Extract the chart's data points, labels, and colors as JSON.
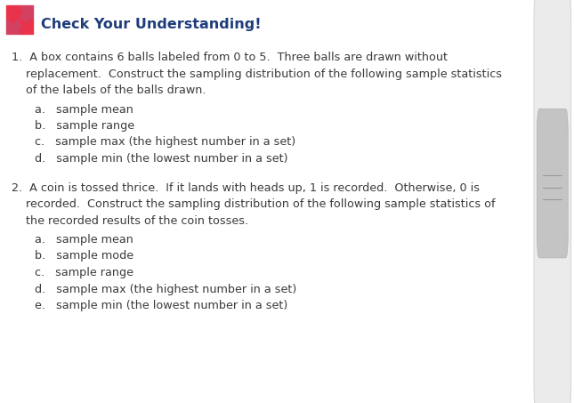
{
  "title": "Check Your Understanding!",
  "title_color": "#1f3d7a",
  "title_fontsize": 11.5,
  "background_color": "#ffffff",
  "body_color": "#3a3a3a",
  "body_fontsize": 9.2,
  "puzzle_color1": "#e8334a",
  "puzzle_color2": "#d44060",
  "item1_lines": [
    "1.  A box contains 6 balls labeled from 0 to 5.  Three balls are drawn without",
    "    replacement.  Construct the sampling distribution of the following sample statistics",
    "    of the labels of the balls drawn."
  ],
  "item1_subs": [
    "a.   sample mean",
    "b.   sample range",
    "c.   sample max (the highest number in a set)",
    "d.   sample min (the lowest number in a set)"
  ],
  "item2_lines": [
    "2.  A coin is tossed thrice.  If it lands with heads up, 1 is recorded.  Otherwise, 0 is",
    "    recorded.  Construct the sampling distribution of the following sample statistics of",
    "    the recorded results of the coin tosses."
  ],
  "item2_subs": [
    "a.   sample mean",
    "b.   sample mode",
    "c.   sample range",
    "d.   sample max (the highest number in a set)",
    "e.   sample min (the lowest number in a set)"
  ],
  "scrollbar_color": "#d0d0d0",
  "scrollbar_track": "#f0f0f0"
}
